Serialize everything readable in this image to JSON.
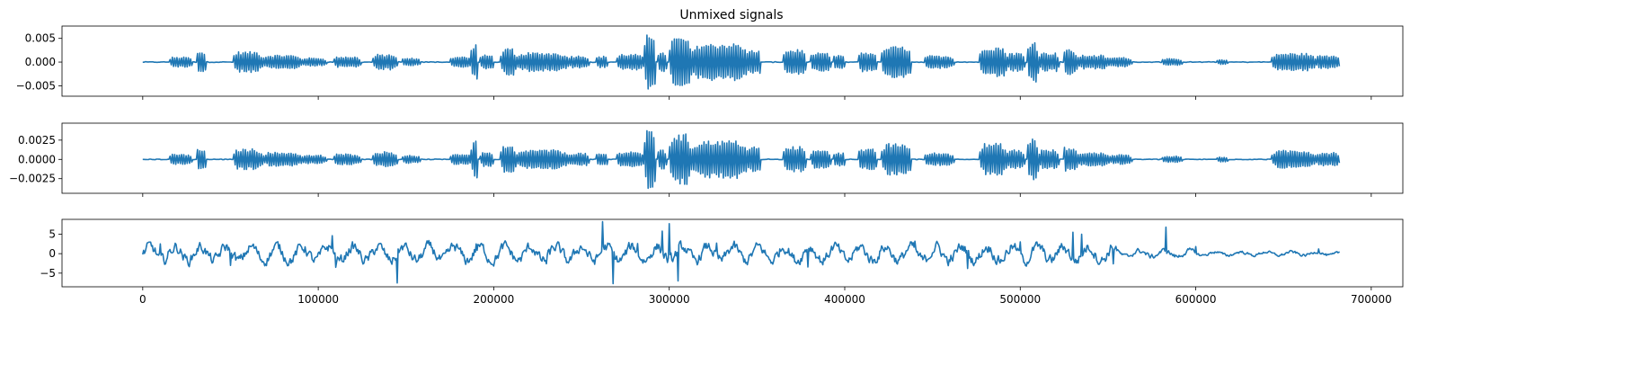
{
  "chart_data": {
    "type": "line",
    "title": "Unmixed signals",
    "color": "#1f77b4",
    "shared_x": true,
    "x_range": [
      -46000,
      718000
    ],
    "x_ticks": [
      0,
      100000,
      200000,
      300000,
      400000,
      500000,
      600000,
      700000
    ],
    "x_tick_labels": [
      "0",
      "100000",
      "200000",
      "300000",
      "400000",
      "500000",
      "600000",
      "700000"
    ],
    "n_samples": 682000,
    "segments": [
      [
        15000,
        28000,
        0.16
      ],
      [
        30000,
        36000,
        0.32
      ],
      [
        51000,
        68000,
        0.33
      ],
      [
        68000,
        90000,
        0.22
      ],
      [
        90000,
        104000,
        0.13
      ],
      [
        108000,
        124000,
        0.17
      ],
      [
        131000,
        145000,
        0.24
      ],
      [
        147000,
        158000,
        0.12
      ],
      [
        175000,
        187000,
        0.17
      ],
      [
        187000,
        191000,
        0.58
      ],
      [
        192000,
        200000,
        0.22
      ],
      [
        204000,
        212000,
        0.42
      ],
      [
        213000,
        242000,
        0.3
      ],
      [
        242000,
        254000,
        0.2
      ],
      [
        258000,
        265000,
        0.18
      ],
      [
        270000,
        285000,
        0.25
      ],
      [
        286000,
        292000,
        0.98
      ],
      [
        293000,
        298000,
        0.3
      ],
      [
        300000,
        312000,
        0.8
      ],
      [
        312000,
        345000,
        0.6
      ],
      [
        345000,
        352000,
        0.4
      ],
      [
        365000,
        378000,
        0.4
      ],
      [
        380000,
        392000,
        0.28
      ],
      [
        393000,
        400000,
        0.22
      ],
      [
        407000,
        418000,
        0.32
      ],
      [
        421000,
        438000,
        0.5
      ],
      [
        445000,
        462000,
        0.2
      ],
      [
        477000,
        492000,
        0.5
      ],
      [
        492000,
        502000,
        0.3
      ],
      [
        504000,
        510000,
        0.68
      ],
      [
        510000,
        522000,
        0.3
      ],
      [
        524000,
        532000,
        0.4
      ],
      [
        532000,
        550000,
        0.22
      ],
      [
        550000,
        563000,
        0.15
      ],
      [
        580000,
        592000,
        0.1
      ],
      [
        612000,
        618000,
        0.08
      ],
      [
        643000,
        668000,
        0.28
      ],
      [
        668000,
        682000,
        0.22
      ]
    ],
    "panels": [
      {
        "kind": "speech",
        "amplitude": 0.0066,
        "y_range": [
          -0.0072,
          0.0076
        ],
        "y_ticks": [
          -0.005,
          0.0,
          0.005
        ],
        "y_tick_labels": [
          "−0.005",
          "0.000",
          "0.005"
        ]
      },
      {
        "kind": "speech",
        "amplitude": 0.0041,
        "y_range": [
          -0.0044,
          0.0047
        ],
        "y_ticks": [
          -0.0025,
          0.0,
          0.0025
        ],
        "y_tick_labels": [
          "−0.0025",
          "0.0000",
          "0.0025"
        ]
      },
      {
        "kind": "noise",
        "y_range": [
          -8.5,
          8.8
        ],
        "y_ticks": [
          -5,
          0,
          5
        ],
        "y_tick_labels": [
          "−5",
          "0",
          "5"
        ],
        "spikes": [
          [
            10000,
            2.5
          ],
          [
            50000,
            -3.0
          ],
          [
            108000,
            4.6
          ],
          [
            110000,
            -3.5
          ],
          [
            145000,
            -7.5
          ],
          [
            190000,
            2.5
          ],
          [
            230000,
            -2.6
          ],
          [
            262000,
            8.2
          ],
          [
            268000,
            -7.7
          ],
          [
            282000,
            2.6
          ],
          [
            296000,
            5.8
          ],
          [
            300000,
            7.7
          ],
          [
            305000,
            -7.0
          ],
          [
            327000,
            2.7
          ],
          [
            379000,
            -3.4
          ],
          [
            440000,
            3.2
          ],
          [
            460000,
            -2.0
          ],
          [
            470000,
            -3.8
          ],
          [
            500000,
            3.0
          ],
          [
            530000,
            5.5
          ],
          [
            535000,
            5.0
          ],
          [
            553000,
            -2.6
          ],
          [
            583000,
            6.8
          ],
          [
            600000,
            1.8
          ],
          [
            670000,
            1.2
          ]
        ]
      }
    ]
  }
}
